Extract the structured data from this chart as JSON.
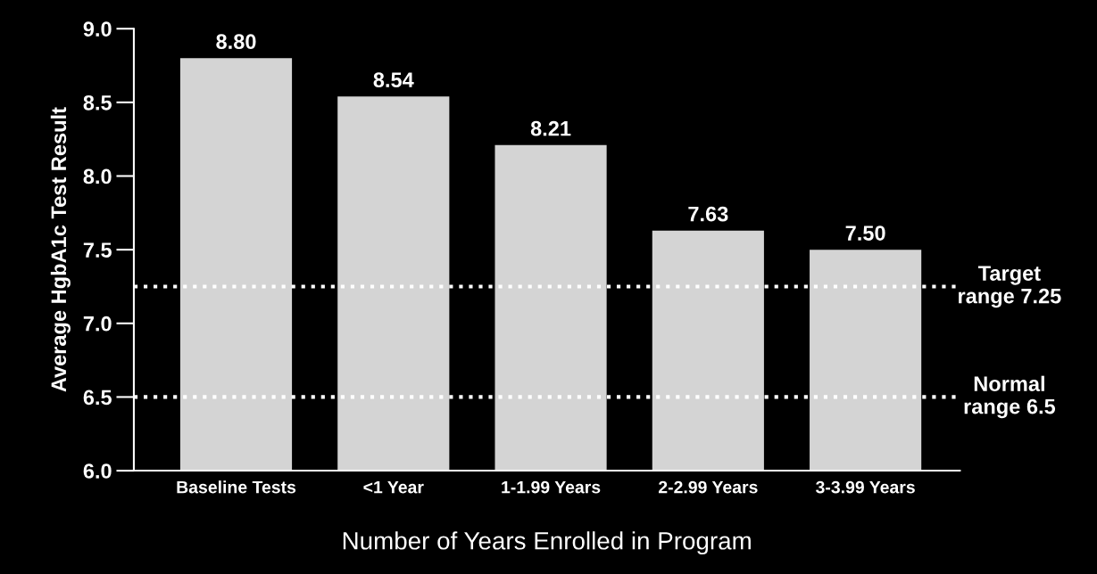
{
  "chart_data": {
    "type": "bar",
    "xlabel": "Number of Years Enrolled in Program",
    "ylabel": "Average HgbA1c Test Result",
    "categories": [
      "Baseline Tests",
      "<1 Year",
      "1-1.99 Years",
      "2-2.99 Years",
      "3-3.99 Years"
    ],
    "values": [
      8.8,
      8.54,
      8.21,
      7.63,
      7.5
    ],
    "value_labels": [
      "8.80",
      "8.54",
      "8.21",
      "7.63",
      "7.50"
    ],
    "color": "#d4d4d4",
    "ylim": [
      6,
      9
    ],
    "yticks": [
      {
        "value": 6,
        "label": "6.0"
      },
      {
        "value": 6.5,
        "label": "6.5"
      },
      {
        "value": 7,
        "label": "7.0"
      },
      {
        "value": 7.5,
        "label": "7.5"
      },
      {
        "value": 8,
        "label": "8.0"
      },
      {
        "value": 8.5,
        "label": "8.5"
      },
      {
        "value": 9,
        "label": "9.0"
      }
    ],
    "ref_lines": [
      {
        "axis": "y",
        "value": 7.25,
        "label": "Target\nrange 7.25",
        "color": "#ffffff",
        "line_style": "dotted"
      },
      {
        "axis": "y",
        "value": 6.5,
        "label": "Normal\nrange 6.5",
        "color": "#ffffff",
        "line_style": "dotted"
      }
    ],
    "grid": false,
    "legend": false
  }
}
